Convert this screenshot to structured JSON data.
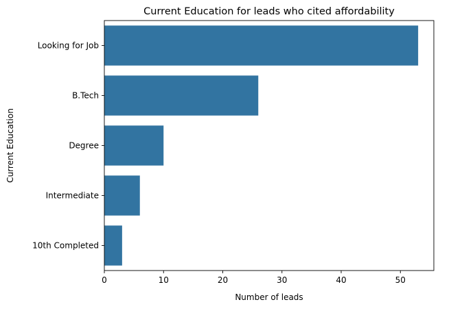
{
  "chart_data": {
    "type": "bar",
    "orientation": "horizontal",
    "title": "Current Education for leads who cited affordability",
    "xlabel": "Number of leads",
    "ylabel": "Current Education",
    "categories": [
      "Looking for Job",
      "B.Tech",
      "Degree",
      "Intermediate",
      "10th Completed"
    ],
    "values": [
      53,
      26,
      10,
      6,
      3
    ],
    "xlim": [
      0,
      55.65
    ],
    "xticks": [
      0,
      10,
      20,
      30,
      40,
      50
    ],
    "grid": false,
    "bar_color": "#3274a1"
  }
}
